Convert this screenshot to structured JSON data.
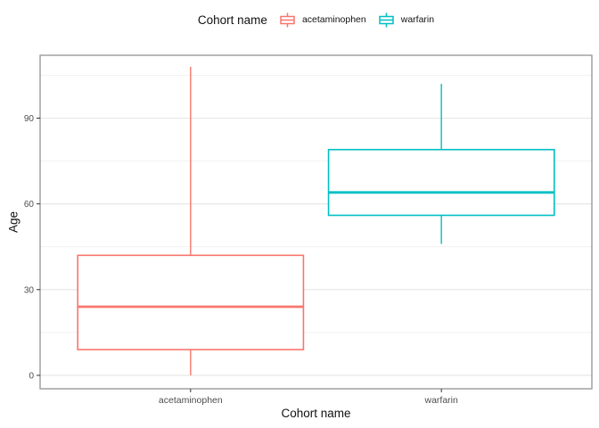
{
  "figure": {
    "ylabel": "Age",
    "xlabel": "Cohort name"
  },
  "legend": {
    "title": "Cohort name",
    "position": "top",
    "items": [
      {
        "label": "acetaminophen",
        "color": "#F8766D"
      },
      {
        "label": "warfarin",
        "color": "#00BFC4"
      }
    ]
  },
  "chart_data": {
    "type": "boxplot",
    "title": "",
    "legend_title": "Cohort name",
    "legend_position": "top",
    "xlabel": "Cohort name",
    "ylabel": "Age",
    "categories": [
      "acetaminophen",
      "warfarin"
    ],
    "series": [
      {
        "name": "acetaminophen",
        "color": "#F8766D",
        "min": 0,
        "q1": 9,
        "median": 24,
        "q3": 42,
        "max": 108,
        "outliers": []
      },
      {
        "name": "warfarin",
        "color": "#00BFC4",
        "min": 46,
        "q1": 56,
        "median": 64,
        "q3": 79,
        "max": 102,
        "outliers": []
      }
    ],
    "y_ticks": [
      0,
      30,
      60,
      90
    ],
    "y_minor_ticks": [
      15,
      45,
      75,
      105
    ],
    "ylim": [
      -4.7,
      112
    ],
    "grid": true,
    "style": {
      "background": "#FFFFFF",
      "panel_border": "#9A9A9A",
      "grid_major": "#E5E5E5",
      "grid_minor": "#F0F0F0",
      "tick_mark_color": "#333333",
      "tick_label_color": "#4D4D4D",
      "axis_title_color": "#111111"
    }
  }
}
